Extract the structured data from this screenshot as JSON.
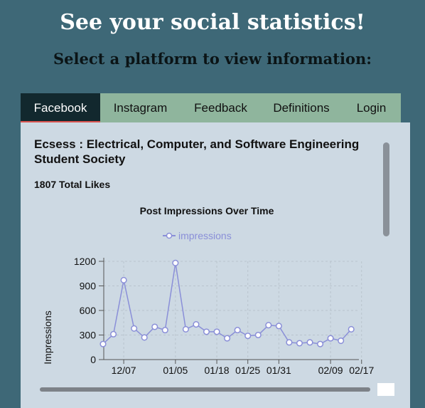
{
  "header": {
    "title": "See your social statistics!",
    "subtitle": "Select a platform to view information:"
  },
  "tabs": [
    {
      "label": "Facebook",
      "active": true
    },
    {
      "label": "Instagram",
      "active": false
    },
    {
      "label": "Feedback",
      "active": false
    },
    {
      "label": "Definitions",
      "active": false
    },
    {
      "label": "Login",
      "active": false
    }
  ],
  "page": {
    "org_name": "Ecsess : Electrical, Computer, and Software Engineering Student Society",
    "likes": "1807 Total Likes"
  },
  "chart_data": {
    "type": "line",
    "title": "Post Impressions Over Time",
    "ylabel": "Impressions",
    "xlabel": "",
    "ylim": [
      0,
      1200
    ],
    "yticks": [
      "0",
      "300",
      "600",
      "900",
      "1200"
    ],
    "xticks": [
      {
        "label": "12/07",
        "index": 2
      },
      {
        "label": "01/05",
        "index": 7
      },
      {
        "label": "01/18",
        "index": 11
      },
      {
        "label": "01/25",
        "index": 14
      },
      {
        "label": "01/31",
        "index": 17
      },
      {
        "label": "02/09",
        "index": 22
      },
      {
        "label": "02/17",
        "index": 25
      }
    ],
    "series": [
      {
        "name": "impressions",
        "color": "#8a8fd8",
        "values": [
          190,
          310,
          970,
          380,
          270,
          400,
          360,
          1180,
          370,
          430,
          340,
          340,
          260,
          360,
          290,
          300,
          420,
          410,
          210,
          200,
          210,
          190,
          260,
          230,
          370
        ]
      }
    ],
    "legend": "top-center",
    "grid": true
  }
}
